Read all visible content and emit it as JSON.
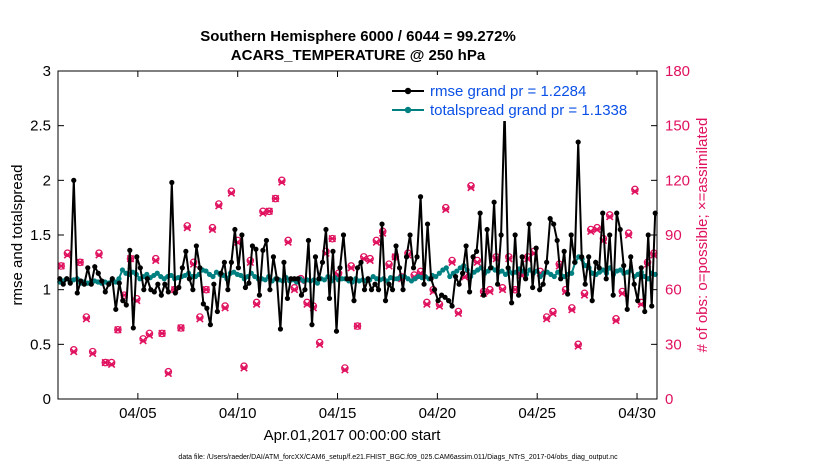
{
  "chart_data": {
    "type": "line",
    "title": "Southern Hemisphere 6000 / 6044 = 99.272%",
    "subtitle": "ACARS_TEMPERATURE @ 250 hPa",
    "xlabel": "Apr.01,2017 00:00:00 start",
    "ylabel_left": "rmse and totalspread",
    "ylabel_right": "# of obs: o=possible; ×=assimilated",
    "xlim": [
      1.0,
      31.0
    ],
    "ylim_left": [
      0,
      3
    ],
    "ylim_right": [
      0,
      180
    ],
    "x_ticks": [
      {
        "value": 5,
        "label": "04/05"
      },
      {
        "value": 10,
        "label": "04/10"
      },
      {
        "value": 15,
        "label": "04/15"
      },
      {
        "value": 20,
        "label": "04/20"
      },
      {
        "value": 25,
        "label": "04/25"
      },
      {
        "value": 30,
        "label": "04/30"
      }
    ],
    "y_ticks_left": [
      "0",
      "0.5",
      "1",
      "1.5",
      "2",
      "2.5",
      "3"
    ],
    "y_ticks_right": [
      "0",
      "30",
      "60",
      "90",
      "120",
      "150",
      "180"
    ],
    "legend": [
      {
        "label": "rmse grand pr = 1.2284",
        "color": "#000000"
      },
      {
        "label": "totalspread grand pr = 1.1338",
        "color": "#008080"
      }
    ],
    "series": [
      {
        "name": "rmse",
        "color": "#000000",
        "axis": "left",
        "values": [
          1.1,
          1.05,
          1.1,
          1.06,
          2.0,
          0.97,
          1.08,
          1.05,
          1.2,
          1.05,
          1.21,
          1.15,
          1.08,
          0.98,
          1.05,
          1.1,
          0.82,
          1.06,
          0.9,
          0.86,
          1.36,
          0.65,
          1.3,
          1.2,
          1.0,
          1.1,
          1.0,
          0.98,
          1.05,
          0.95,
          1.05,
          0.98,
          1.98,
          0.97,
          1.02,
          1.2,
          1.35,
          1.1,
          1.0,
          1.4,
          1.2,
          0.87,
          0.83,
          0.68,
          1.05,
          0.8,
          1.15,
          1.25,
          1.0,
          1.25,
          1.55,
          1.2,
          1.5,
          1.02,
          1.06,
          1.4,
          1.37,
          0.95,
          1.36,
          1.45,
          1.0,
          1.3,
          1.1,
          0.64,
          1.25,
          0.92,
          1.1,
          1.1,
          1.1,
          0.95,
          1.0,
          1.45,
          0.68,
          1.3,
          1.1,
          1.25,
          1.55,
          0.92,
          1.35,
          0.62,
          1.2,
          1.5,
          1.1,
          1.1,
          0.9,
          1.2,
          1.25,
          1.0,
          1.1,
          1.0,
          1.05,
          1.0,
          1.6,
          0.9,
          1.05,
          1.0,
          1.4,
          1.2,
          1.0,
          1.3,
          1.5,
          1.2,
          1.3,
          1.85,
          1.05,
          1.6,
          1.1,
          1.0,
          0.9,
          0.95,
          0.93,
          0.9,
          0.85,
          1.12,
          1.05,
          1.15,
          1.4,
          0.98,
          1.3,
          1.35,
          1.7,
          0.95,
          1.55,
          1.2,
          1.8,
          1.05,
          1.5,
          2.65,
          1.2,
          0.88,
          1.5,
          0.95,
          1.3,
          1.1,
          1.6,
          1.02,
          1.38,
          1.0,
          1.05,
          1.25,
          1.65,
          1.6,
          1.45,
          1.1,
          1.35,
          0.96,
          1.5,
          1.25,
          2.35,
          1.3,
          1.05,
          1.3,
          0.9,
          1.25,
          1.2,
          1.7,
          1.1,
          1.5,
          0.95,
          1.7,
          1.55,
          1.22,
          0.82,
          1.3,
          1.05,
          0.9,
          1.2,
          0.8,
          1.5,
          0.85,
          1.7
        ]
      },
      {
        "name": "totalspread",
        "color": "#008080",
        "axis": "left",
        "values": [
          1.07,
          1.08,
          1.1,
          1.07,
          1.09,
          1.1,
          1.06,
          1.07,
          1.06,
          1.07,
          1.08,
          1.07,
          1.06,
          1.07,
          1.06,
          1.08,
          1.07,
          1.1,
          1.18,
          1.15,
          1.14,
          1.16,
          1.14,
          1.1,
          1.12,
          1.14,
          1.11,
          1.13,
          1.15,
          1.12,
          1.1,
          1.12,
          1.13,
          1.1,
          1.11,
          1.12,
          1.13,
          1.15,
          1.12,
          1.12,
          1.14,
          1.18,
          1.17,
          1.14,
          1.12,
          1.16,
          1.14,
          1.13,
          1.1,
          1.15,
          1.16,
          1.14,
          1.13,
          1.1,
          1.12,
          1.15,
          1.12,
          1.1,
          1.1,
          1.09,
          1.12,
          1.08,
          1.1,
          1.09,
          1.08,
          1.11,
          1.08,
          1.09,
          1.07,
          1.1,
          1.08,
          1.09,
          1.08,
          1.09,
          1.06,
          1.1,
          1.09,
          1.12,
          1.08,
          1.11,
          1.09,
          1.1,
          1.1,
          1.08,
          1.07,
          1.1,
          1.08,
          1.09,
          1.08,
          1.09,
          1.12,
          1.1,
          1.09,
          1.1,
          1.08,
          1.11,
          1.1,
          1.1,
          1.12,
          1.12,
          1.1,
          1.08,
          1.1,
          1.12,
          1.11,
          1.12,
          1.1,
          1.13,
          1.12,
          1.15,
          1.18,
          1.2,
          1.12,
          1.15,
          1.17,
          1.2,
          1.22,
          1.18,
          1.12,
          1.16,
          1.18,
          1.2,
          1.15,
          1.17,
          1.2,
          1.18,
          1.16,
          1.17,
          1.14,
          1.17,
          1.15,
          1.16,
          1.19,
          1.17,
          1.14,
          1.18,
          1.15,
          1.17,
          1.12,
          1.15,
          1.16,
          1.14,
          1.12,
          1.16,
          1.13,
          1.12,
          1.14,
          1.15,
          1.25,
          1.3,
          1.28,
          1.22,
          1.2,
          1.15,
          1.14,
          1.16,
          1.18,
          1.15,
          1.2,
          1.14,
          1.17,
          1.18,
          1.15,
          1.16,
          1.18,
          1.12,
          1.14,
          1.16,
          1.12,
          1.1,
          1.15,
          1.14
        ]
      },
      {
        "name": "obs possible",
        "color": "#e0115f",
        "axis": "right",
        "marker": "o",
        "values": [
          73,
          80,
          27,
          75,
          45,
          26,
          80,
          20,
          20,
          38,
          57,
          77,
          55,
          33,
          36,
          77,
          36,
          15,
          60,
          39,
          95,
          75,
          45,
          60,
          94,
          107,
          51,
          114,
          87,
          18,
          76,
          53,
          103,
          103,
          110,
          120,
          87,
          61,
          66,
          53,
          51,
          31,
          81,
          88,
          69,
          17,
          73,
          40,
          78,
          77,
          87,
          92,
          74,
          78,
          67,
          80,
          68,
          70,
          53,
          60,
          52,
          105,
          76,
          48,
          68,
          117,
          76,
          59,
          60,
          78,
          61,
          78,
          60,
          69,
          78,
          81,
          70,
          45,
          48,
          74,
          60,
          50,
          30,
          58,
          93,
          94,
          88,
          101,
          44,
          59,
          91,
          115,
          53,
          75,
          80
        ]
      },
      {
        "name": "obs assimilated",
        "color": "#e0115f",
        "axis": "right",
        "marker": "x",
        "values": [
          73,
          79,
          26,
          75,
          44,
          25,
          79,
          20,
          19,
          38,
          57,
          77,
          54,
          32,
          35,
          76,
          36,
          14,
          60,
          39,
          94,
          74,
          44,
          60,
          93,
          106,
          50,
          113,
          86,
          17,
          75,
          52,
          102,
          103,
          110,
          119,
          86,
          60,
          65,
          52,
          50,
          30,
          80,
          88,
          68,
          16,
          72,
          40,
          77,
          76,
          86,
          91,
          73,
          78,
          66,
          79,
          67,
          69,
          52,
          59,
          51,
          104,
          75,
          47,
          67,
          116,
          75,
          58,
          59,
          77,
          60,
          77,
          60,
          68,
          77,
          80,
          69,
          44,
          47,
          73,
          59,
          49,
          29,
          57,
          92,
          93,
          87,
          100,
          43,
          58,
          90,
          114,
          52,
          74,
          79
        ]
      }
    ],
    "footnote": "data file: /Users/raeder/DAI/ATM_forcXX/CAM6_setup/f.e21.FHIST_BGC.f09_025.CAM6assim.011/Diags_NTrS_2017-04/obs_diag_output.nc"
  }
}
